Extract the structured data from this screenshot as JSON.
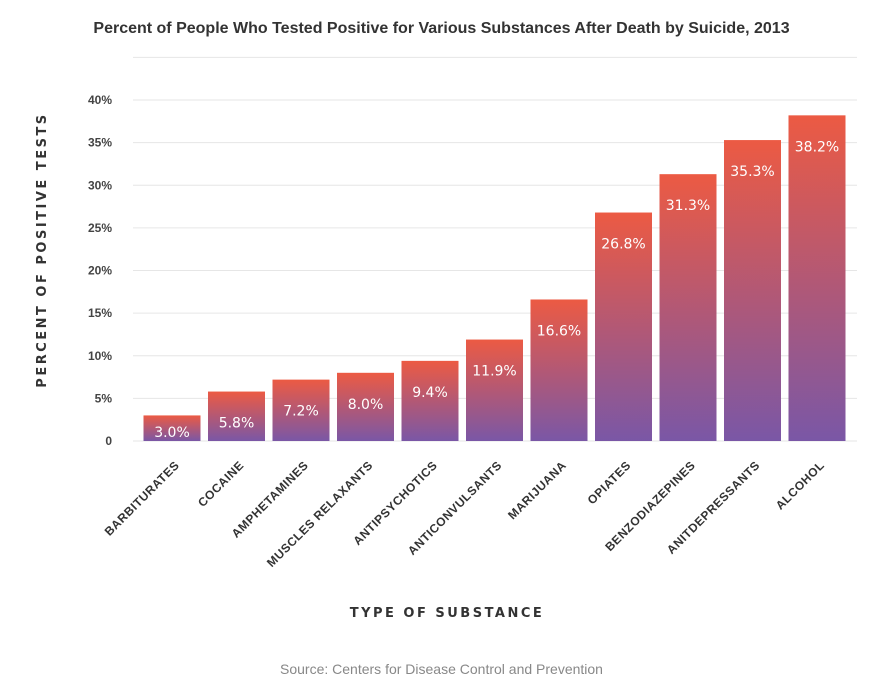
{
  "chart_data": {
    "type": "bar",
    "title": "Percent of People Who Tested Positive for Various Substances After Death by Suicide, 2013",
    "xlabel": "TYPE OF SUBSTANCE",
    "ylabel": "PERCENT OF POSITIVE TESTS",
    "ylim": [
      0,
      40
    ],
    "yticks": [
      "0",
      "5%",
      "10%",
      "15%",
      "20%",
      "25%",
      "30%",
      "35%",
      "40%"
    ],
    "categories": [
      "BARBITURATES",
      "COCAINE",
      "AMPHETAMINES",
      "MUSCLES RELAXANTS",
      "ANTIPSYCHOTICS",
      "ANTICONVULSANTS",
      "MARIJUANA",
      "OPIATES",
      "BENZODIAZEPINES",
      "ANITDEPRESSANTS",
      "ALCOHOL"
    ],
    "values": [
      3.0,
      5.8,
      7.2,
      8.0,
      9.4,
      11.9,
      16.6,
      26.8,
      31.3,
      35.3,
      38.2
    ],
    "value_labels": [
      "3.0%",
      "5.8%",
      "7.2%",
      "8.0%",
      "9.4%",
      "11.9%",
      "16.6%",
      "26.8%",
      "31.3%",
      "35.3%",
      "38.2%"
    ],
    "grid": true,
    "legend": "none",
    "colors": {
      "bar_top": "#ec5a43",
      "bar_bottom": "#7a57a6",
      "grid": "#e6e6e6",
      "label": "#ffffff"
    }
  },
  "source": "Source: Centers for Disease Control and Prevention"
}
